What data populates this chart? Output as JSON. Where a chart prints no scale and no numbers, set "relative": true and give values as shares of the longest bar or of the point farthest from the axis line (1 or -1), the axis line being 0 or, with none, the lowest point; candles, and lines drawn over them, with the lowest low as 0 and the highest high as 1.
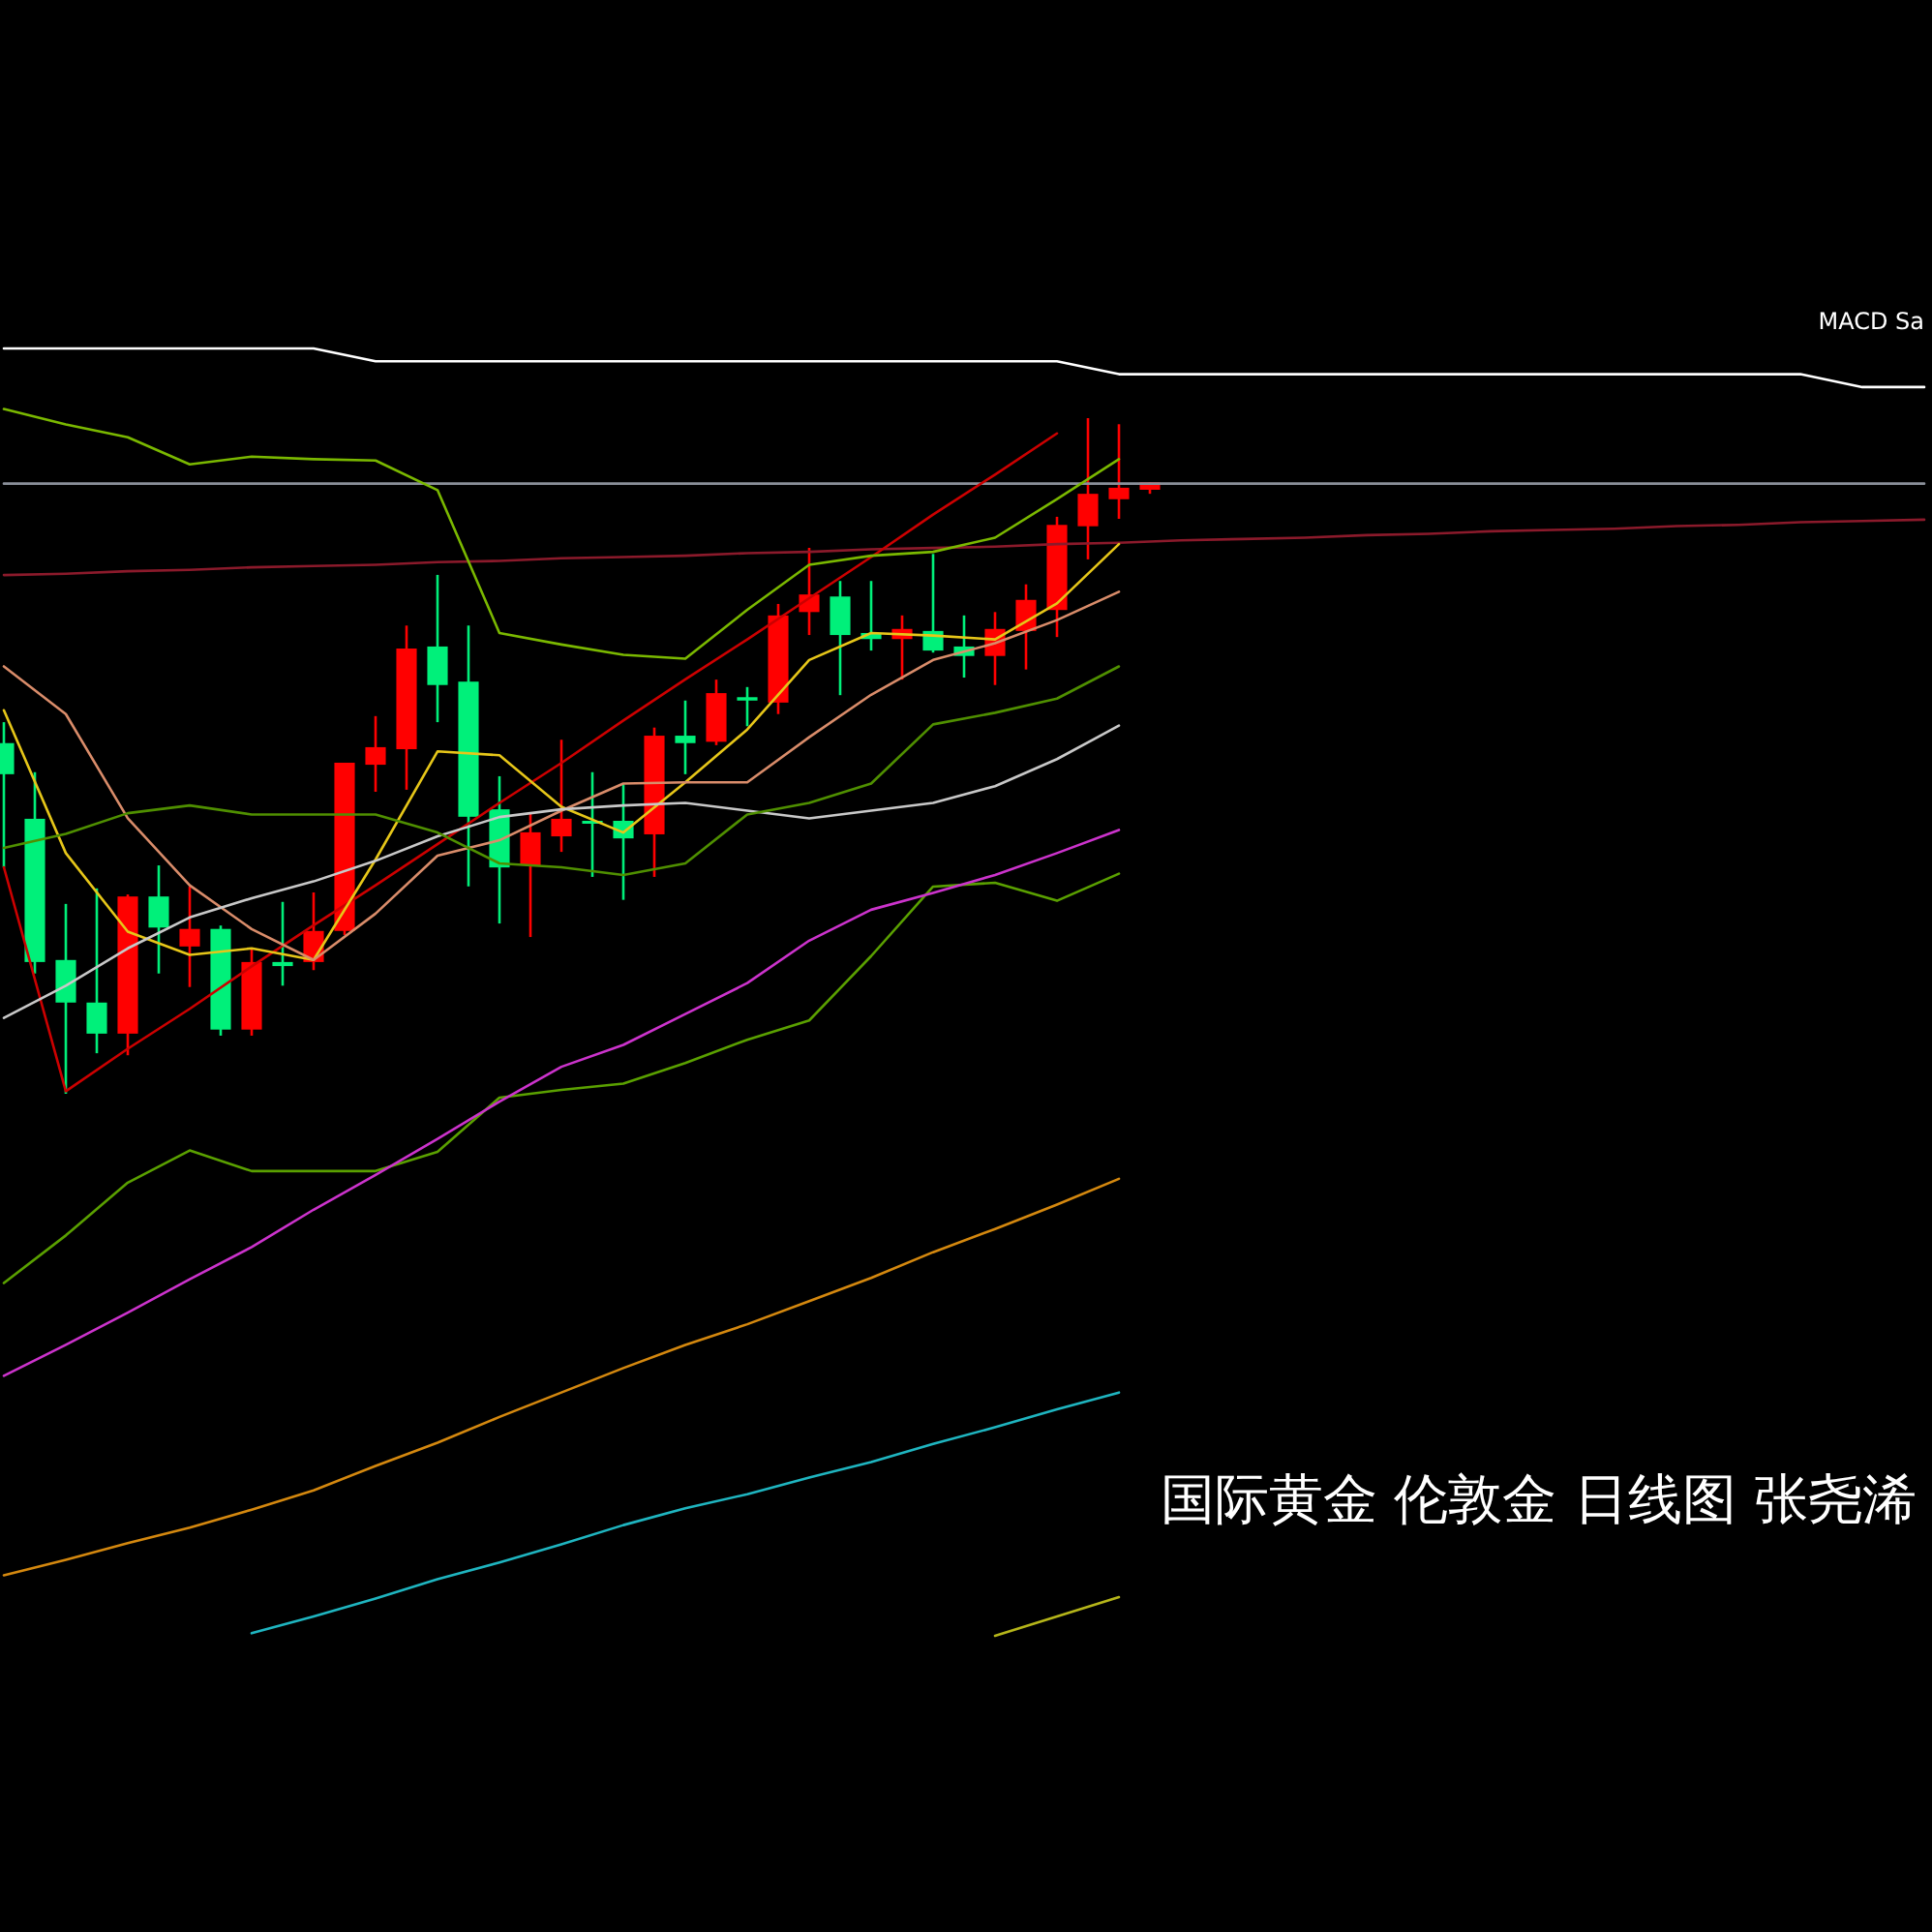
{
  "chart_data": [
    {
      "type": "candlestick",
      "relative": true,
      "categories": [
        null,
        null,
        null,
        null,
        null,
        null,
        null,
        null,
        null,
        null,
        null,
        null,
        null,
        null,
        null,
        null,
        null,
        null,
        null,
        null,
        null,
        null,
        null,
        null,
        null,
        null,
        null,
        null,
        null,
        null,
        null,
        null,
        null,
        null,
        null,
        null,
        null,
        null
      ],
      "ohlc": [
        [
          0.519,
          0.55,
          0.335,
          0.473
        ],
        [
          0.407,
          0.476,
          0.178,
          0.195
        ],
        [
          0.198,
          0.281,
          0,
          0.135
        ],
        [
          0.135,
          0.304,
          0.06,
          0.089
        ],
        [
          0.089,
          0.295,
          0.057,
          0.292
        ],
        [
          0.292,
          0.338,
          0.178,
          0.246
        ],
        [
          0.218,
          0.307,
          0.158,
          0.244
        ],
        [
          0.244,
          0.249,
          0.086,
          0.095
        ],
        [
          0.095,
          0.215,
          0.086,
          0.195
        ],
        [
          0.195,
          0.284,
          0.16,
          0.189
        ],
        [
          0.195,
          0.298,
          0.183,
          0.241
        ],
        [
          0.241,
          0.49,
          0.235,
          0.49
        ],
        [
          0.487,
          0.559,
          0.447,
          0.513
        ],
        [
          0.51,
          0.693,
          0.45,
          0.659
        ],
        [
          0.662,
          0.768,
          0.55,
          0.605
        ],
        [
          0.61,
          0.693,
          0.307,
          0.41
        ],
        [
          0.421,
          0.47,
          0.252,
          0.335
        ],
        [
          0.338,
          0.415,
          0.232,
          0.387
        ],
        [
          0.381,
          0.524,
          0.358,
          0.407
        ],
        [
          0.404,
          0.476,
          0.321,
          0.401
        ],
        [
          0.404,
          0.458,
          0.287,
          0.378
        ],
        [
          0.384,
          0.542,
          0.321,
          0.53
        ],
        [
          0.53,
          0.582,
          0.473,
          0.519
        ],
        [
          0.521,
          0.613,
          0.516,
          0.593
        ],
        [
          0.587,
          0.602,
          0.544,
          0.582
        ],
        [
          0.579,
          0.725,
          0.562,
          0.708
        ],
        [
          0.713,
          0.808,
          0.679,
          0.739
        ],
        [
          0.736,
          0.759,
          0.59,
          0.679
        ],
        [
          0.682,
          0.759,
          0.656,
          0.673
        ],
        [
          0.673,
          0.708,
          0.613,
          0.688
        ],
        [
          0.685,
          0.799,
          0.653,
          0.656
        ],
        [
          0.662,
          0.708,
          0.616,
          0.648
        ],
        [
          0.648,
          0.713,
          0.605,
          0.688
        ],
        [
          0.685,
          0.754,
          0.628,
          0.731
        ],
        [
          0.716,
          0.854,
          0.676,
          0.842
        ],
        [
          0.84,
          1,
          0.791,
          0.888
        ],
        [
          0.88,
          0.991,
          0.851,
          0.897
        ],
        [
          0.894,
          0.905,
          0.888,
          0.905
        ]
      ],
      "annotations": [
        "国际黄金 伦敦金 日线图 张尧浠",
        "MACD Sa"
      ]
    },
    {
      "type": "line",
      "relative": true,
      "categories": [
        null,
        null,
        null,
        null,
        null,
        null,
        null,
        null,
        null,
        null,
        null,
        null,
        null,
        null,
        null,
        null,
        null,
        null,
        null,
        null,
        null,
        null,
        null,
        null,
        null,
        null,
        null,
        null,
        null,
        null,
        null,
        null
      ],
      "series": [
        {
          "color": "#ffffff",
          "values": [
            1.0,
            1.0,
            1.0,
            1.0,
            1.0,
            1.0,
            0.99,
            0.99,
            0.99,
            0.99,
            0.99,
            0.99,
            0.99,
            0.99,
            0.99,
            0.99,
            0.99,
            0.99,
            0.98,
            0.98,
            0.98,
            0.98,
            0.98,
            0.98,
            0.98,
            0.98,
            0.98,
            0.98,
            0.98,
            0.98,
            0.97,
            0.97
          ]
        },
        {
          "color": "#8a8f99",
          "values": [
            0.895,
            0.895,
            0.895,
            0.895,
            0.895,
            0.895,
            0.895,
            0.895,
            0.895,
            0.895,
            0.895,
            0.895,
            0.895,
            0.895,
            0.895,
            0.895,
            0.895,
            0.895,
            0.895,
            0.895,
            0.895,
            0.895,
            0.895,
            0.895,
            0.895,
            0.895,
            0.895,
            0.895,
            0.895,
            0.895,
            0.895,
            0.895
          ]
        },
        {
          "color": "#8b1a2b",
          "values": [
            0.824,
            0.825,
            0.827,
            0.828,
            0.83,
            0.831,
            0.832,
            0.834,
            0.835,
            0.837,
            0.838,
            0.839,
            0.841,
            0.842,
            0.844,
            0.845,
            0.846,
            0.848,
            0.849,
            0.851,
            0.852,
            0.853,
            0.855,
            0.856,
            0.858,
            0.859,
            0.86,
            0.862,
            0.863,
            0.865,
            0.866,
            0.867
          ]
        },
        {
          "color": "#cc0000",
          "values": [
            0.597,
            0.423,
            0.456,
            0.487,
            0.52,
            0.552,
            0.583,
            0.615,
            0.647,
            0.678,
            0.711,
            0.743,
            0.774,
            0.806,
            0.838,
            0.871,
            0.902,
            0.934,
            null,
            null,
            null,
            null,
            null,
            null,
            null,
            null,
            null,
            null,
            null,
            null,
            null,
            null
          ]
        },
        {
          "color": "#e6c619",
          "values": [
            0.719,
            0.608,
            0.547,
            0.529,
            0.534,
            0.525,
            0.603,
            0.687,
            0.684,
            0.644,
            0.624,
            0.663,
            0.704,
            0.758,
            0.779,
            0.777,
            0.774,
            0.802,
            0.848,
            null,
            null,
            null,
            null,
            null,
            null,
            null,
            null,
            null,
            null,
            null,
            null,
            null
          ]
        },
        {
          "color": "#d98c6a",
          "values": [
            0.753,
            0.716,
            0.635,
            0.583,
            0.549,
            0.525,
            0.561,
            0.606,
            0.618,
            0.641,
            0.662,
            0.663,
            0.663,
            0.698,
            0.731,
            0.758,
            0.771,
            0.789,
            0.811,
            null,
            null,
            null,
            null,
            null,
            null,
            null,
            null,
            null,
            null,
            null,
            null,
            null
          ]
        },
        {
          "color": "#c8c8c8",
          "values": [
            0.48,
            0.505,
            0.534,
            0.558,
            0.573,
            0.586,
            0.602,
            0.621,
            0.636,
            0.642,
            0.645,
            0.647,
            0.641,
            0.635,
            0.641,
            0.647,
            0.66,
            0.681,
            0.707,
            null,
            null,
            null,
            null,
            null,
            null,
            null,
            null,
            null,
            null,
            null,
            null,
            null
          ]
        },
        {
          "color": "#7ab800",
          "values": [
            0.953,
            0.941,
            0.931,
            0.91,
            0.916,
            0.914,
            0.913,
            0.89,
            0.779,
            0.77,
            0.762,
            0.759,
            0.797,
            0.832,
            0.839,
            0.842,
            0.853,
            0.883,
            0.914,
            null,
            null,
            null,
            null,
            null,
            null,
            null,
            null,
            null,
            null,
            null,
            null,
            null
          ]
        },
        {
          "color": "#4f8f00",
          "values": [
            0.612,
            0.623,
            0.639,
            0.645,
            0.638,
            0.638,
            0.638,
            0.624,
            0.6,
            0.597,
            0.591,
            0.6,
            0.638,
            0.647,
            0.662,
            0.708,
            0.717,
            0.728,
            0.753,
            null,
            null,
            null,
            null,
            null,
            null,
            null,
            null,
            null,
            null,
            null,
            null,
            null
          ]
        },
        {
          "color": "#5aa000",
          "values": [
            0.274,
            0.311,
            0.352,
            0.377,
            0.361,
            0.361,
            0.361,
            0.376,
            0.418,
            0.424,
            0.429,
            0.445,
            0.463,
            0.478,
            0.528,
            0.582,
            0.585,
            0.571,
            0.592,
            null,
            null,
            null,
            null,
            null,
            null,
            null,
            null,
            null,
            null,
            null,
            null,
            null
          ]
        },
        {
          "color": "#cc33cc",
          "values": [
            0.202,
            0.226,
            0.251,
            0.277,
            0.302,
            0.331,
            0.358,
            0.386,
            0.415,
            0.442,
            0.459,
            0.483,
            0.507,
            0.54,
            0.564,
            0.577,
            0.591,
            0.608,
            0.626,
            null,
            null,
            null,
            null,
            null,
            null,
            null,
            null,
            null,
            null,
            null,
            null,
            null
          ]
        },
        {
          "color": "#d4880f",
          "values": [
            0.047,
            0.059,
            0.072,
            0.084,
            0.098,
            0.113,
            0.132,
            0.15,
            0.17,
            0.189,
            0.208,
            0.226,
            0.242,
            0.26,
            0.278,
            0.298,
            0.316,
            0.335,
            0.355,
            null,
            null,
            null,
            null,
            null,
            null,
            null,
            null,
            null,
            null,
            null,
            null,
            null
          ]
        },
        {
          "color": "#1fb5c0",
          "values": [
            null,
            null,
            null,
            null,
            0.002,
            0.015,
            0.029,
            0.044,
            0.057,
            0.071,
            0.086,
            0.099,
            0.11,
            0.123,
            0.135,
            0.149,
            0.162,
            0.176,
            0.189,
            null,
            null,
            null,
            null,
            null,
            null,
            null,
            null,
            null,
            null,
            null,
            null,
            null
          ]
        },
        {
          "color": "#b5b51a",
          "values": [
            null,
            null,
            null,
            null,
            null,
            null,
            null,
            null,
            null,
            null,
            null,
            null,
            null,
            null,
            null,
            null,
            0,
            0.015,
            0.03,
            null,
            null,
            null,
            null,
            null,
            null,
            null,
            null,
            null,
            null,
            null,
            null,
            null
          ]
        }
      ]
    }
  ]
}
